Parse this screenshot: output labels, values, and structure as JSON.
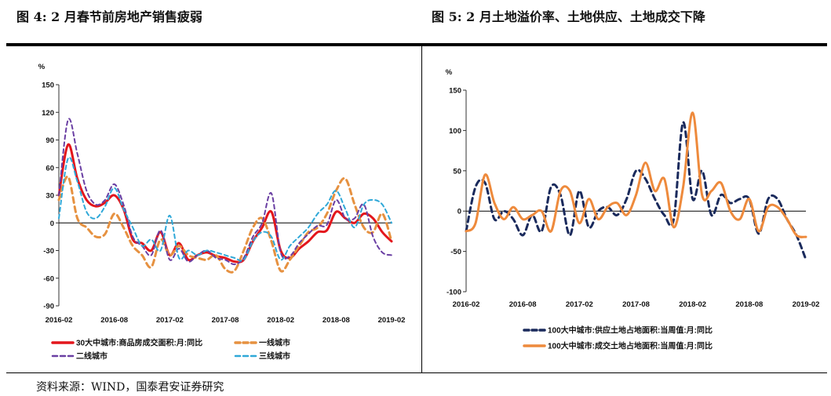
{
  "left_title": "图 4:  2 月春节前房地产销售疲弱",
  "right_title": "图 5:  2 月土地溢价率、土地供应、土地成交下降",
  "source": "资料来源：WIND，国泰君安证券研究",
  "chart_data": [
    {
      "type": "line",
      "ylabel": "%",
      "ylim": [
        -90,
        150
      ],
      "yticks": [
        -90,
        -60,
        -30,
        0,
        30,
        60,
        90,
        120,
        150
      ],
      "x": [
        "2016-02",
        "2016-03",
        "2016-04",
        "2016-05",
        "2016-06",
        "2016-07",
        "2016-08",
        "2016-09",
        "2016-10",
        "2016-11",
        "2016-12",
        "2017-01",
        "2017-02",
        "2017-03",
        "2017-04",
        "2017-05",
        "2017-06",
        "2017-07",
        "2017-08",
        "2017-09",
        "2017-10",
        "2017-11",
        "2017-12",
        "2018-01",
        "2018-02",
        "2018-03",
        "2018-04",
        "2018-05",
        "2018-06",
        "2018-07",
        "2018-08",
        "2018-09",
        "2018-10",
        "2018-11",
        "2018-12",
        "2019-01",
        "2019-02"
      ],
      "xticks": [
        "2016-02",
        "2016-08",
        "2017-02",
        "2017-08",
        "2018-02",
        "2018-08",
        "2019-02"
      ],
      "legend_position": "bottom",
      "series": [
        {
          "name": "30大中城市:商品房成交面积:月:同比",
          "color": "#e3161c",
          "dash": "solid",
          "width": 3,
          "values": [
            30,
            85,
            48,
            25,
            18,
            22,
            30,
            15,
            -18,
            -22,
            -30,
            -10,
            -35,
            -22,
            -40,
            -35,
            -32,
            -36,
            -38,
            -42,
            -40,
            -20,
            -5,
            12,
            -30,
            -38,
            -28,
            -20,
            -10,
            -8,
            12,
            5,
            0,
            10,
            5,
            -10,
            -20
          ]
        },
        {
          "name": "一线城市",
          "color": "#e69140",
          "dash": "dashed",
          "width": 3,
          "values": [
            25,
            50,
            5,
            -5,
            -15,
            -12,
            10,
            -5,
            -25,
            -35,
            -48,
            -18,
            -35,
            -25,
            -35,
            -38,
            -40,
            -35,
            -50,
            -52,
            -30,
            -5,
            5,
            -20,
            -52,
            -40,
            -25,
            -10,
            -5,
            10,
            35,
            48,
            20,
            -5,
            -10,
            10,
            -20
          ]
        },
        {
          "name": "二线城市",
          "color": "#6a3fa3",
          "dash": "dashed",
          "width": 2,
          "values": [
            30,
            112,
            75,
            35,
            20,
            25,
            42,
            20,
            -15,
            -25,
            -35,
            -8,
            -40,
            -28,
            -42,
            -35,
            -30,
            -38,
            -40,
            -45,
            -38,
            -15,
            0,
            32,
            -32,
            -36,
            -22,
            -12,
            -3,
            -2,
            25,
            5,
            5,
            20,
            -15,
            -32,
            -35
          ]
        },
        {
          "name": "三线城市",
          "color": "#2fa8d8",
          "dash": "dashed",
          "width": 2,
          "values": [
            5,
            70,
            45,
            12,
            5,
            18,
            38,
            15,
            -5,
            -25,
            -18,
            -30,
            8,
            -38,
            -30,
            -35,
            -30,
            -32,
            -35,
            -38,
            -40,
            -20,
            -10,
            -15,
            -40,
            -25,
            -15,
            -5,
            10,
            20,
            35,
            15,
            -5,
            20,
            25,
            20,
            0
          ]
        }
      ]
    },
    {
      "type": "line",
      "ylabel": "%",
      "ylim": [
        -100,
        150
      ],
      "yticks": [
        -100,
        -50,
        0,
        50,
        100,
        150
      ],
      "x": [
        "2016-02",
        "2016-03",
        "2016-04",
        "2016-05",
        "2016-06",
        "2016-07",
        "2016-08",
        "2016-09",
        "2016-10",
        "2016-11",
        "2016-12",
        "2017-01",
        "2017-02",
        "2017-03",
        "2017-04",
        "2017-05",
        "2017-06",
        "2017-07",
        "2017-08",
        "2017-09",
        "2017-10",
        "2017-11",
        "2017-12",
        "2018-01",
        "2018-02",
        "2018-03",
        "2018-04",
        "2018-05",
        "2018-06",
        "2018-07",
        "2018-08",
        "2018-09",
        "2018-10",
        "2018-11",
        "2018-12",
        "2019-01",
        "2019-02"
      ],
      "xticks": [
        "2016-02",
        "2016-08",
        "2017-02",
        "2017-08",
        "2018-02",
        "2018-08",
        "2019-02"
      ],
      "legend_position": "bottom",
      "series": [
        {
          "name": "100大中城市:供应土地占地面积:当周值:月:同比",
          "color": "#1a2a5c",
          "dash": "dashed",
          "width": 3,
          "values": [
            -25,
            30,
            35,
            -10,
            0,
            -10,
            -30,
            -5,
            -25,
            30,
            20,
            -30,
            25,
            -20,
            0,
            5,
            -5,
            15,
            50,
            40,
            15,
            -5,
            -10,
            110,
            15,
            50,
            -5,
            20,
            10,
            15,
            15,
            -28,
            15,
            15,
            -10,
            -30,
            -60
          ]
        },
        {
          "name": "100大中城市:成交土地占地面积:当周值:月:同比",
          "color": "#ee8a3c",
          "dash": "solid",
          "width": 3,
          "values": [
            -25,
            -15,
            45,
            10,
            -10,
            5,
            -10,
            -5,
            0,
            -25,
            25,
            25,
            -15,
            15,
            -10,
            5,
            10,
            -5,
            20,
            60,
            25,
            40,
            -20,
            30,
            122,
            20,
            25,
            35,
            0,
            -10,
            15,
            -25,
            5,
            5,
            -10,
            -30,
            -32
          ]
        }
      ]
    }
  ]
}
